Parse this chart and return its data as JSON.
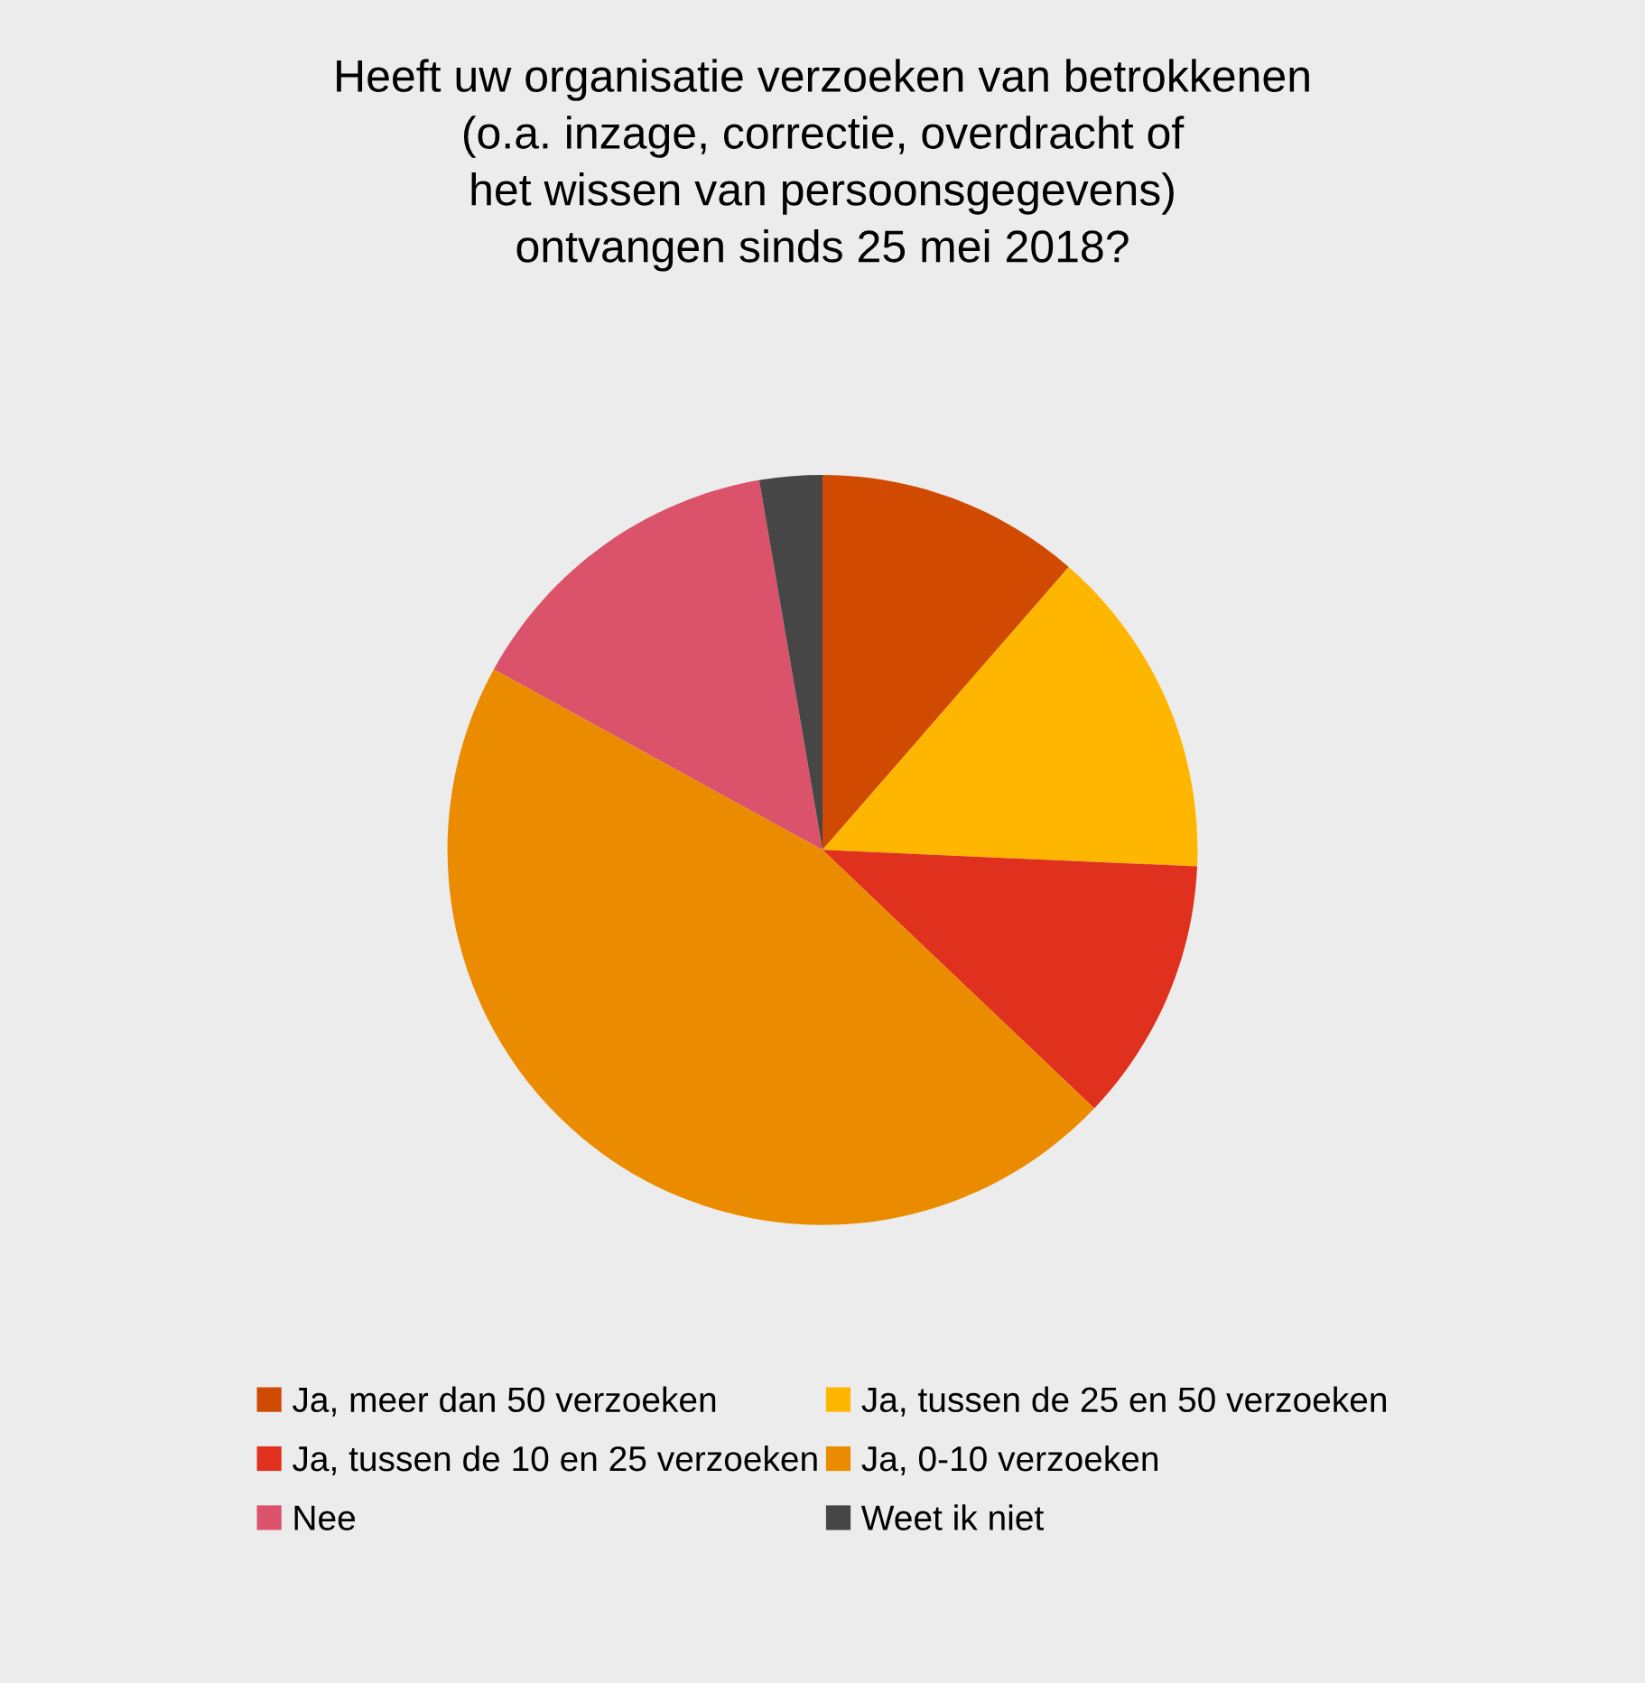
{
  "chart_data": {
    "type": "pie",
    "title": "Heeft uw organisatie verzoeken van betrokkenen\n(o.a. inzage, correctie, overdracht of\nhet wissen van persoonsgegevens)\nontvangen sinds 25 mei 2018?",
    "categories": [
      "Ja, meer dan 50 verzoeken",
      "Ja, tussen de 25 en 50 verzoeken",
      "Ja, tussen de 10 en 25 verzoeken",
      "Ja, 0-10 verzoeken",
      "Nee",
      "Weet ik niet"
    ],
    "values": [
      11.4,
      14.3,
      11.4,
      45.9,
      14.3,
      2.7
    ],
    "colors": [
      "#d04a02",
      "#ffb600",
      "#e0301e",
      "#eb8c00",
      "#db536a",
      "#464646"
    ],
    "legend": "bottom"
  }
}
